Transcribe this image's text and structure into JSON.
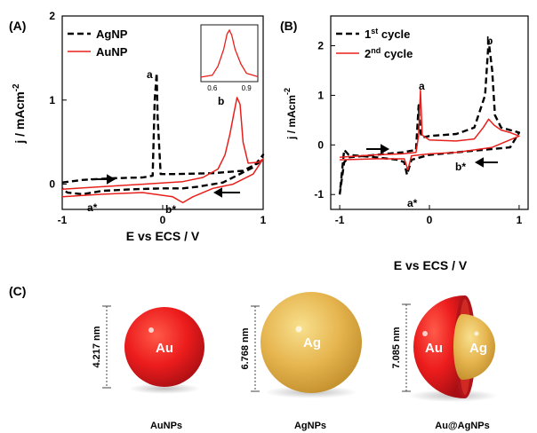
{
  "colors": {
    "red": "#e8201c",
    "black": "#000000",
    "gold": "#e2b24c",
    "gold_light": "#f3d57a",
    "red_dark": "#b0141a"
  },
  "chart_data": [
    {
      "panel": "(A)",
      "type": "line",
      "xlabel": "E vs ECS / V",
      "ylabel": "j / mAcm",
      "ylabel_sup": "-2",
      "xlim": [
        -1.0,
        1.0
      ],
      "ylim": [
        -0.3,
        2.0
      ],
      "xticks": [
        "-1",
        "0",
        "1"
      ],
      "yticks": [
        "0",
        "1",
        "2"
      ],
      "series": [
        {
          "name": "AgNP",
          "style": "dashed",
          "color": "#000000",
          "x": [
            -1.0,
            -0.8,
            -0.5,
            -0.2,
            -0.1,
            -0.08,
            -0.06,
            -0.05,
            -0.02,
            0.1,
            0.5,
            0.8,
            0.95,
            1.0,
            0.9,
            0.6,
            0.35,
            0.2,
            0.0,
            -0.3,
            -0.6,
            -0.8,
            -0.95,
            -1.0
          ],
          "y": [
            0.02,
            0.05,
            0.07,
            0.08,
            0.1,
            1.0,
            1.32,
            0.8,
            0.12,
            0.12,
            0.13,
            0.16,
            0.25,
            0.35,
            0.2,
            0.02,
            -0.03,
            -0.05,
            -0.05,
            -0.06,
            -0.08,
            -0.12,
            -0.1,
            -0.05
          ]
        },
        {
          "name": "AuNP",
          "style": "solid",
          "color": "#e8201c",
          "x": [
            -1.0,
            -0.6,
            -0.2,
            0.2,
            0.4,
            0.55,
            0.62,
            0.67,
            0.71,
            0.74,
            0.77,
            0.8,
            0.85,
            0.95,
            1.0,
            0.9,
            0.7,
            0.5,
            0.3,
            0.2,
            0.1,
            -0.2,
            -0.6,
            -1.0
          ],
          "y": [
            -0.06,
            -0.03,
            0.0,
            0.03,
            0.08,
            0.18,
            0.35,
            0.6,
            0.85,
            1.03,
            0.95,
            0.5,
            0.25,
            0.26,
            0.3,
            0.12,
            0.0,
            -0.05,
            -0.15,
            -0.22,
            -0.15,
            -0.1,
            -0.12,
            -0.15
          ]
        }
      ],
      "annotations": [
        "a",
        "b",
        "a*",
        "b*"
      ],
      "legend_position": "top-left",
      "inset": {
        "type": "line",
        "xticks": [
          "0.6",
          "0.9"
        ],
        "x": [
          0.5,
          0.6,
          0.65,
          0.7,
          0.73,
          0.75,
          0.77,
          0.8,
          0.85,
          0.9,
          1.0
        ],
        "y": [
          0.02,
          0.06,
          0.25,
          0.6,
          0.92,
          1.0,
          0.9,
          0.6,
          0.3,
          0.1,
          0.03
        ]
      }
    },
    {
      "panel": "(B)",
      "type": "line",
      "xlabel": "E vs ECS / V",
      "ylabel": "j / mAcm",
      "ylabel_sup": "-2",
      "xlim": [
        -1.1,
        1.1
      ],
      "ylim": [
        -1.3,
        2.6
      ],
      "xticks": [
        "-1",
        "0",
        "1"
      ],
      "yticks": [
        "-1",
        "0",
        "1",
        "2"
      ],
      "series": [
        {
          "name": "1st cycle",
          "name_base": "1",
          "name_sup": "st",
          "name_rest": " cycle",
          "style": "dashed",
          "color": "#000000",
          "x": [
            -1.0,
            -0.95,
            -0.9,
            -0.6,
            -0.3,
            -0.15,
            -0.12,
            -0.1,
            -0.08,
            0.0,
            0.3,
            0.5,
            0.62,
            0.66,
            0.7,
            0.73,
            0.8,
            0.9,
            1.0,
            0.9,
            0.6,
            0.3,
            0.0,
            -0.2,
            -0.25,
            -0.28,
            -0.35,
            -0.6,
            -0.9,
            -0.95,
            -1.0
          ],
          "y": [
            -1.0,
            -0.35,
            -0.25,
            -0.2,
            -0.15,
            -0.1,
            0.8,
            0.25,
            0.15,
            0.18,
            0.22,
            0.35,
            1.0,
            2.1,
            1.5,
            0.6,
            0.35,
            0.3,
            0.25,
            -0.05,
            -0.1,
            -0.15,
            -0.2,
            -0.3,
            -0.6,
            -0.35,
            -0.3,
            -0.25,
            -0.2,
            -0.1,
            -1.0
          ]
        },
        {
          "name": "2nd cycle",
          "name_base": "2",
          "name_sup": "nd",
          "name_rest": " cycle",
          "style": "solid",
          "color": "#e8201c",
          "x": [
            -1.0,
            -0.6,
            -0.3,
            -0.15,
            -0.12,
            -0.1,
            -0.08,
            0.0,
            0.3,
            0.5,
            0.6,
            0.66,
            0.72,
            0.8,
            0.9,
            1.0,
            0.7,
            0.3,
            0.0,
            -0.2,
            -0.24,
            -0.28,
            -0.6,
            -1.0
          ],
          "y": [
            -0.25,
            -0.2,
            -0.18,
            -0.15,
            0.2,
            1.1,
            0.2,
            0.1,
            0.08,
            0.12,
            0.35,
            0.52,
            0.4,
            0.3,
            0.25,
            0.18,
            -0.05,
            -0.15,
            -0.18,
            -0.22,
            -0.5,
            -0.28,
            -0.28,
            -0.3
          ]
        }
      ],
      "annotations": [
        "a",
        "b",
        "a*",
        "b*"
      ],
      "legend_position": "top-left"
    }
  ],
  "panel_c": {
    "label": "(C)",
    "spheres": [
      {
        "inner": "Au",
        "size": "4.217 nm",
        "caption": "AuNPs"
      },
      {
        "inner": "Ag",
        "size": "6.768 nm",
        "caption": "AgNPs"
      },
      {
        "inner_core": "Au",
        "inner_shell": "Ag",
        "size": "7.085 nm",
        "caption": "Au@AgNPs"
      }
    ]
  }
}
